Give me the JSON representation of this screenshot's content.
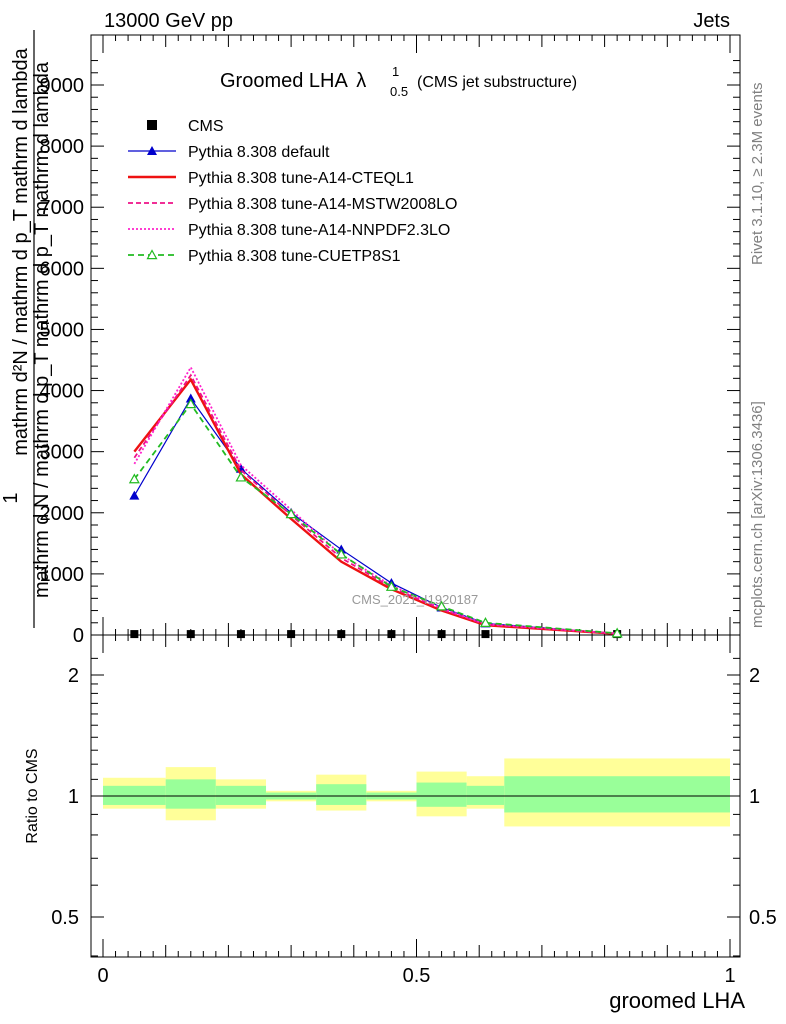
{
  "header": {
    "left": "13000 GeV pp",
    "right": "Jets"
  },
  "main_plot": {
    "title": "Groomed LHA",
    "title_symbol": "λ",
    "title_sup": "1",
    "title_sub": "0.5",
    "title_suffix": "(CMS jet substructure)",
    "ylabel_numerator": "1",
    "ylabel_denominator": "mathrm d N / mathrm d p_T mathrm d p_T mathrm d lambda",
    "ylabel_overlay": "mathrm d²N / mathrm d p_T mathrm d lambda",
    "watermark": "CMS_2021_I1920187",
    "y_ticks": [
      "0",
      "1000",
      "2000",
      "3000",
      "4000",
      "5000",
      "6000",
      "7000",
      "8000",
      "9000"
    ]
  },
  "ratio_plot": {
    "ylabel": "Ratio to CMS",
    "y_ticks": [
      "0.5",
      "1",
      "2"
    ]
  },
  "x_axis": {
    "label": "groomed LHA",
    "ticks": [
      "0",
      "0.5",
      "1"
    ]
  },
  "side_text": {
    "rivet": "Rivet 3.1.10, ≥ 2.3M events",
    "mcplots": "mcplots.cern.ch [arXiv:1306.3436]"
  },
  "chart_data": {
    "type": "line",
    "xlabel": "groomed LHA",
    "xlim": [
      0,
      1
    ],
    "ylim": [
      0,
      9800
    ],
    "ratio_ylim": [
      0.4,
      2.35
    ],
    "ratio_scale": "log",
    "bin_edges": [
      0,
      0.1,
      0.18,
      0.26,
      0.34,
      0.42,
      0.5,
      0.58,
      0.64,
      1.0
    ],
    "x": [
      0.05,
      0.14,
      0.22,
      0.3,
      0.38,
      0.46,
      0.54,
      0.61,
      0.82
    ],
    "series": [
      {
        "name": "CMS",
        "color": "#000000",
        "marker": "square",
        "values": [
          15,
          15,
          15,
          15,
          15,
          15,
          15,
          15,
          15
        ]
      },
      {
        "name": "Pythia 8.308 default",
        "color": "#0000cc",
        "marker": "triangle",
        "values": [
          2280,
          3870,
          2720,
          2000,
          1400,
          850,
          450,
          190,
          25
        ]
      },
      {
        "name": "Pythia 8.308 tune-A14-CTEQL1",
        "color": "#ee1111",
        "marker": "none",
        "values": [
          3000,
          4180,
          2630,
          1900,
          1200,
          750,
          400,
          160,
          20
        ]
      },
      {
        "name": "Pythia 8.308 tune-A14-MSTW2008LO",
        "color": "#ee1188",
        "marker": "none",
        "values": [
          2900,
          4250,
          2700,
          1960,
          1260,
          780,
          420,
          170,
          22
        ]
      },
      {
        "name": "Pythia 8.308 tune-A14-NNPDF2.3LO",
        "color": "#ff22cc",
        "marker": "none",
        "values": [
          2800,
          4380,
          2780,
          2050,
          1310,
          810,
          440,
          180,
          24
        ]
      },
      {
        "name": "Pythia 8.308 tune-CUETP8S1",
        "color": "#22bb22",
        "marker": "open-triangle",
        "values": [
          2550,
          3780,
          2580,
          1980,
          1320,
          790,
          470,
          200,
          28
        ]
      }
    ],
    "ratio_bands": {
      "inner_color": "#99ff99",
      "outer_color": "#ffff99",
      "inner": [
        [
          0.95,
          1.06
        ],
        [
          0.93,
          1.1
        ],
        [
          0.95,
          1.06
        ],
        [
          0.98,
          1.02
        ],
        [
          0.95,
          1.07
        ],
        [
          0.98,
          1.02
        ],
        [
          0.94,
          1.08
        ],
        [
          0.95,
          1.06
        ],
        [
          0.91,
          1.12
        ]
      ],
      "outer": [
        [
          0.93,
          1.11
        ],
        [
          0.87,
          1.18
        ],
        [
          0.93,
          1.1
        ],
        [
          0.97,
          1.03
        ],
        [
          0.92,
          1.13
        ],
        [
          0.97,
          1.03
        ],
        [
          0.89,
          1.15
        ],
        [
          0.93,
          1.12
        ],
        [
          0.84,
          1.24
        ]
      ]
    }
  }
}
